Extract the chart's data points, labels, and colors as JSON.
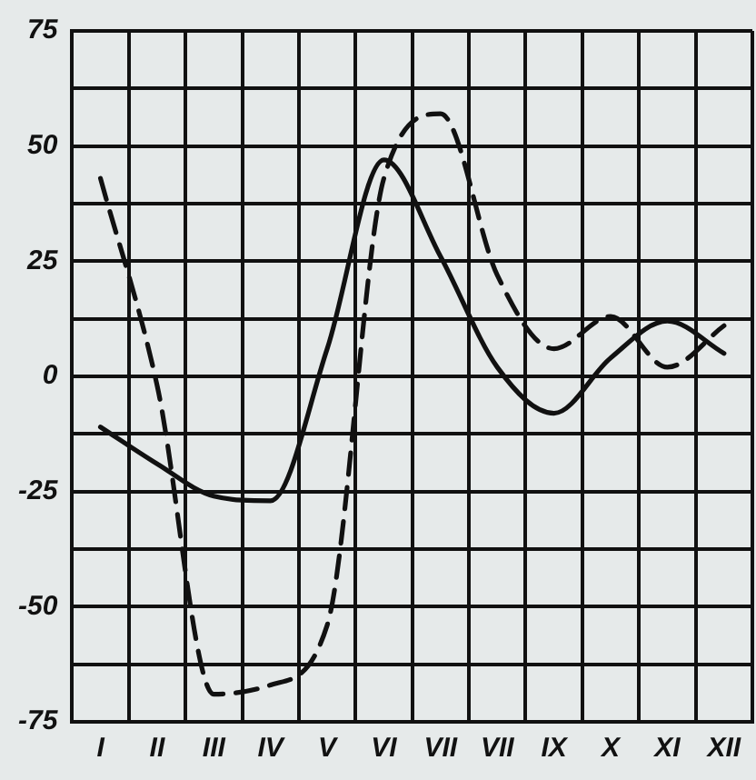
{
  "chart_data": {
    "type": "line",
    "categories": [
      "I",
      "II",
      "III",
      "IV",
      "V",
      "VI",
      "VII",
      "VII",
      "IX",
      "X",
      "XI",
      "XII"
    ],
    "series": [
      {
        "color": "#111111",
        "line_style": "solid",
        "values": [
          -11,
          -19,
          -26,
          -27,
          6,
          47,
          26,
          2,
          -8,
          4,
          12,
          5
        ]
      },
      {
        "color": "#111111",
        "line_style": "dashed",
        "values": [
          43,
          -2,
          -69,
          -67,
          -54,
          43,
          57,
          22,
          6,
          13,
          2,
          11
        ]
      }
    ],
    "ylim": [
      -75,
      75
    ],
    "yticks": [
      -75,
      {
        "value": -62.5,
        "label": null
      },
      -50,
      {
        "value": -37.5,
        "label": null
      },
      -25,
      {
        "value": -12.5,
        "label": null
      },
      0,
      {
        "value": 12.5,
        "label": null
      },
      25,
      {
        "value": 37.5,
        "label": null
      },
      50,
      {
        "value": 62.5,
        "label": null
      },
      75
    ],
    "grid": true,
    "legend": false,
    "marker": "none"
  }
}
